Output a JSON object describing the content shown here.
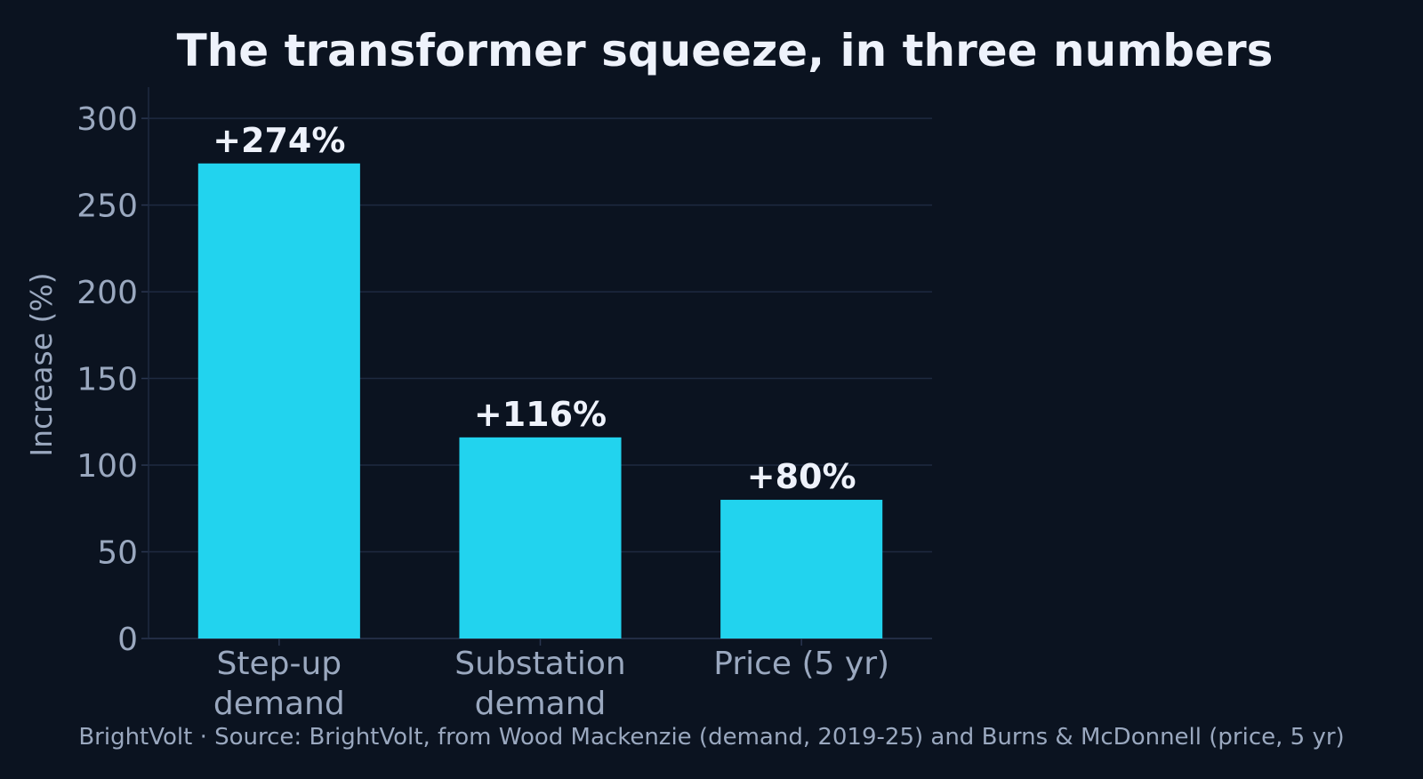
{
  "chart_data": {
    "type": "bar",
    "title": "The transformer squeeze, in three numbers",
    "xlabel": "",
    "ylabel": "Increase (%)",
    "ylim": [
      0,
      318
    ],
    "yticks": [
      "0",
      "50",
      "100",
      "150",
      "200",
      "250",
      "300"
    ],
    "ytick_values": [
      0,
      50,
      100,
      150,
      200,
      250,
      300
    ],
    "grid": true,
    "categories": [
      [
        "Step-up",
        "demand"
      ],
      [
        "Substation",
        "demand"
      ],
      [
        "Price (5 yr)"
      ]
    ],
    "values": [
      274,
      116,
      80
    ],
    "value_labels": [
      "+274%",
      "+116%",
      "+80%"
    ],
    "colors": {
      "background": "#0b1320",
      "bar": "#22d3ee",
      "grid": "#1e2a40",
      "text_primary": "#eef2fb",
      "text_secondary": "#9aa8bf"
    }
  },
  "footer": {
    "source": "BrightVolt  ·  Source: BrightVolt, from Wood Mackenzie (demand, 2019-25) and Burns & McDonnell (price, 5 yr)"
  }
}
